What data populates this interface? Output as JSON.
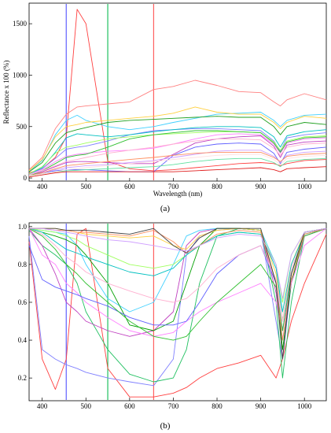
{
  "charts": [
    {
      "caption": "(a)",
      "chart_data": {
        "type": "line",
        "xlabel": "Wavelength (nm)",
        "ylabel": "Reflectance x 100 (%)",
        "xlim": [
          370,
          1050
        ],
        "ylim": [
          -30,
          1700
        ],
        "xticks": [
          400,
          500,
          600,
          700,
          800,
          900,
          1000
        ],
        "yticks": [
          0,
          500,
          1000,
          1500
        ],
        "vlines": [
          {
            "x": 455,
            "color": "#6060ff"
          },
          {
            "x": 550,
            "color": "#20c060"
          },
          {
            "x": 655,
            "color": "#ff6060"
          }
        ],
        "x": [
          370,
          400,
          430,
          455,
          480,
          500,
          550,
          600,
          655,
          700,
          750,
          800,
          850,
          900,
          930,
          945,
          960,
          1000,
          1050
        ],
        "series": [
          {
            "color": "#ff4040",
            "values": [
              50,
              90,
              200,
              400,
              1640,
              1500,
              160,
              90,
              70,
              80,
              100,
              120,
              140,
              150,
              140,
              120,
              140,
              170,
              180
            ]
          },
          {
            "color": "#ff8080",
            "values": [
              80,
              200,
              480,
              620,
              690,
              700,
              720,
              740,
              860,
              890,
              950,
              900,
              840,
              830,
              740,
              700,
              760,
              820,
              760
            ]
          },
          {
            "color": "#40d0ff",
            "values": [
              60,
              170,
              420,
              560,
              610,
              560,
              500,
              470,
              500,
              540,
              580,
              620,
              630,
              640,
              560,
              500,
              560,
              610,
              620
            ]
          },
          {
            "color": "#20a020",
            "values": [
              60,
              150,
              340,
              440,
              470,
              490,
              540,
              560,
              570,
              580,
              590,
              600,
              590,
              590,
              500,
              420,
              500,
              540,
              520
            ]
          },
          {
            "color": "#ffd040",
            "values": [
              70,
              180,
              400,
              500,
              520,
              540,
              560,
              580,
              600,
              630,
              690,
              640,
              620,
              620,
              540,
              480,
              540,
              600,
              580
            ]
          },
          {
            "color": "#8080ff",
            "values": [
              40,
              90,
              190,
              280,
              300,
              310,
              360,
              420,
              460,
              470,
              480,
              480,
              470,
              460,
              360,
              260,
              390,
              420,
              440
            ]
          },
          {
            "color": "#00c0c0",
            "values": [
              40,
              100,
              250,
              390,
              430,
              420,
              400,
              420,
              450,
              470,
              490,
              500,
              500,
              490,
              400,
              300,
              410,
              450,
              470
            ]
          },
          {
            "color": "#ff80ff",
            "values": [
              30,
              80,
              160,
              210,
              230,
              240,
              260,
              270,
              290,
              330,
              380,
              420,
              430,
              420,
              330,
              240,
              340,
              380,
              390
            ]
          },
          {
            "color": "#a0ff60",
            "values": [
              40,
              110,
              240,
              300,
              320,
              340,
              380,
              400,
              420,
              430,
              440,
              450,
              450,
              440,
              350,
              270,
              360,
              400,
              410
            ]
          },
          {
            "color": "#c040c0",
            "values": [
              20,
              60,
              110,
              150,
              160,
              160,
              150,
              140,
              140,
              230,
              340,
              380,
              400,
              410,
              310,
              200,
              320,
              350,
              360
            ]
          },
          {
            "color": "#6060ff",
            "values": [
              20,
              50,
              70,
              80,
              80,
              80,
              70,
              60,
              60,
              220,
              300,
              330,
              340,
              330,
              240,
              140,
              250,
              280,
              300
            ]
          },
          {
            "color": "#30c030",
            "values": [
              20,
              70,
              140,
              200,
              220,
              230,
              300,
              380,
              420,
              440,
              460,
              460,
              450,
              440,
              340,
              250,
              350,
              390,
              400
            ]
          },
          {
            "color": "#ffb0d0",
            "values": [
              30,
              70,
              120,
              160,
              180,
              200,
              240,
              270,
              300,
              330,
              360,
              380,
              380,
              370,
              290,
              220,
              300,
              330,
              340
            ]
          },
          {
            "color": "#d0a0ff",
            "values": [
              20,
              50,
              80,
              100,
              110,
              120,
              130,
              150,
              170,
              200,
              230,
              260,
              270,
              270,
              210,
              150,
              220,
              250,
              260
            ]
          },
          {
            "color": "#ff9060",
            "values": [
              20,
              50,
              90,
              120,
              130,
              140,
              160,
              180,
              200,
              220,
              240,
              250,
              250,
              250,
              200,
              160,
              210,
              230,
              240
            ]
          },
          {
            "color": "#60e0a0",
            "values": [
              20,
              40,
              60,
              70,
              75,
              80,
              90,
              100,
              110,
              130,
              160,
              180,
              190,
              190,
              150,
              110,
              160,
              180,
              190
            ]
          },
          {
            "color": "#e02020",
            "values": [
              10,
              30,
              50,
              60,
              60,
              60,
              60,
              60,
              60,
              60,
              70,
              80,
              90,
              100,
              80,
              60,
              90,
              100,
              110
            ]
          },
          {
            "color": "#ffe0e0",
            "values": [
              20,
              40,
              60,
              80,
              90,
              100,
              120,
              140,
              160,
              180,
              200,
              220,
              230,
              230,
              180,
              130,
              190,
              210,
              220
            ]
          }
        ]
      }
    },
    {
      "caption": "(b)",
      "chart_data": {
        "type": "line",
        "xlabel": "",
        "ylabel": "",
        "xlim": [
          370,
          1050
        ],
        "ylim": [
          0.08,
          1.02
        ],
        "xticks": [
          400,
          500,
          600,
          700,
          800,
          900,
          1000
        ],
        "yticks": [
          0.2,
          0.4,
          0.6,
          0.8,
          1.0
        ],
        "ytick_labels": [
          "0.2",
          "0.4",
          "0.6",
          "0.8",
          "1.0"
        ],
        "vlines": [
          {
            "x": 455,
            "color": "#6060ff"
          },
          {
            "x": 550,
            "color": "#20c060"
          },
          {
            "x": 655,
            "color": "#ff6060"
          }
        ],
        "x": [
          370,
          400,
          430,
          455,
          480,
          500,
          550,
          600,
          655,
          700,
          730,
          760,
          800,
          850,
          900,
          935,
          950,
          970,
          1000,
          1050
        ],
        "series": [
          {
            "color": "#ff4040",
            "values": [
              0.92,
              0.3,
              0.14,
              0.3,
              0.96,
              0.99,
              0.25,
              0.1,
              0.1,
              0.12,
              0.15,
              0.2,
              0.25,
              0.28,
              0.32,
              0.2,
              0.3,
              0.5,
              0.7,
              0.96
            ]
          },
          {
            "color": "#8080ff",
            "values": [
              0.95,
              0.35,
              0.3,
              0.27,
              0.25,
              0.23,
              0.2,
              0.18,
              0.16,
              0.3,
              0.85,
              0.95,
              0.98,
              0.99,
              0.98,
              0.5,
              0.3,
              0.7,
              0.95,
              0.99
            ]
          },
          {
            "color": "#20c060",
            "values": [
              0.98,
              0.9,
              0.85,
              0.8,
              0.7,
              0.55,
              0.35,
              0.22,
              0.18,
              0.2,
              0.35,
              0.7,
              0.95,
              0.99,
              0.98,
              0.6,
              0.2,
              0.6,
              0.95,
              0.99
            ]
          },
          {
            "color": "#c040c0",
            "values": [
              0.99,
              0.9,
              0.75,
              0.6,
              0.55,
              0.5,
              0.45,
              0.42,
              0.45,
              0.55,
              0.9,
              0.97,
              0.99,
              0.99,
              0.98,
              0.65,
              0.4,
              0.7,
              0.95,
              0.99
            ]
          },
          {
            "color": "#40d0ff",
            "values": [
              0.99,
              0.98,
              0.97,
              0.96,
              0.9,
              0.8,
              0.62,
              0.55,
              0.6,
              0.8,
              0.95,
              0.98,
              0.99,
              0.99,
              0.98,
              0.8,
              0.5,
              0.75,
              0.97,
              0.99
            ]
          },
          {
            "color": "#00a000",
            "values": [
              0.99,
              0.97,
              0.95,
              0.93,
              0.9,
              0.85,
              0.7,
              0.48,
              0.45,
              0.5,
              0.7,
              0.9,
              0.99,
              0.99,
              0.98,
              0.7,
              0.35,
              0.7,
              0.96,
              0.99
            ]
          },
          {
            "color": "#ff80ff",
            "values": [
              0.99,
              0.85,
              0.8,
              0.7,
              0.65,
              0.6,
              0.52,
              0.45,
              0.42,
              0.44,
              0.5,
              0.55,
              0.6,
              0.65,
              0.7,
              0.6,
              0.45,
              0.7,
              0.9,
              0.99
            ]
          },
          {
            "color": "#ffd040",
            "values": [
              0.99,
              0.99,
              0.99,
              0.98,
              0.97,
              0.96,
              0.95,
              0.94,
              0.95,
              0.9,
              0.88,
              0.95,
              0.98,
              0.99,
              0.98,
              0.75,
              0.5,
              0.8,
              0.97,
              0.99
            ]
          },
          {
            "color": "#a0ff60",
            "values": [
              0.99,
              0.98,
              0.97,
              0.95,
              0.93,
              0.9,
              0.85,
              0.8,
              0.78,
              0.8,
              0.85,
              0.9,
              0.95,
              0.97,
              0.96,
              0.8,
              0.6,
              0.85,
              0.97,
              0.99
            ]
          },
          {
            "color": "#00c0c0",
            "values": [
              0.99,
              0.97,
              0.92,
              0.88,
              0.86,
              0.84,
              0.8,
              0.76,
              0.74,
              0.78,
              0.85,
              0.9,
              0.95,
              0.97,
              0.96,
              0.78,
              0.55,
              0.8,
              0.96,
              0.99
            ]
          },
          {
            "color": "#6060ff",
            "values": [
              0.9,
              0.72,
              0.68,
              0.66,
              0.64,
              0.62,
              0.58,
              0.52,
              0.48,
              0.48,
              0.5,
              0.6,
              0.75,
              0.85,
              0.9,
              0.7,
              0.45,
              0.75,
              0.95,
              0.99
            ]
          },
          {
            "color": "#ffb0d0",
            "values": [
              0.99,
              0.96,
              0.9,
              0.84,
              0.8,
              0.76,
              0.7,
              0.66,
              0.62,
              0.6,
              0.62,
              0.68,
              0.78,
              0.85,
              0.9,
              0.72,
              0.5,
              0.78,
              0.95,
              0.99
            ]
          },
          {
            "color": "#30c030",
            "values": [
              0.99,
              0.95,
              0.88,
              0.8,
              0.75,
              0.7,
              0.6,
              0.5,
              0.42,
              0.4,
              0.42,
              0.5,
              0.6,
              0.7,
              0.8,
              0.68,
              0.45,
              0.75,
              0.95,
              0.99
            ]
          },
          {
            "color": "#ff9060",
            "values": [
              0.99,
              0.99,
              0.98,
              0.98,
              0.97,
              0.97,
              0.96,
              0.95,
              0.98,
              0.92,
              0.86,
              0.9,
              0.96,
              0.98,
              0.97,
              0.7,
              0.4,
              0.72,
              0.96,
              0.99
            ]
          },
          {
            "color": "#404040",
            "values": [
              0.99,
              0.99,
              0.99,
              0.98,
              0.98,
              0.98,
              0.97,
              0.96,
              0.99,
              0.9,
              0.86,
              0.94,
              0.99,
              0.99,
              0.99,
              0.7,
              0.3,
              0.75,
              0.97,
              0.99
            ]
          },
          {
            "color": "#d0a0ff",
            "values": [
              0.99,
              0.99,
              0.98,
              0.97,
              0.96,
              0.95,
              0.93,
              0.92,
              0.9,
              0.88,
              0.87,
              0.9,
              0.94,
              0.96,
              0.95,
              0.8,
              0.62,
              0.85,
              0.97,
              0.99
            ]
          }
        ]
      }
    }
  ]
}
